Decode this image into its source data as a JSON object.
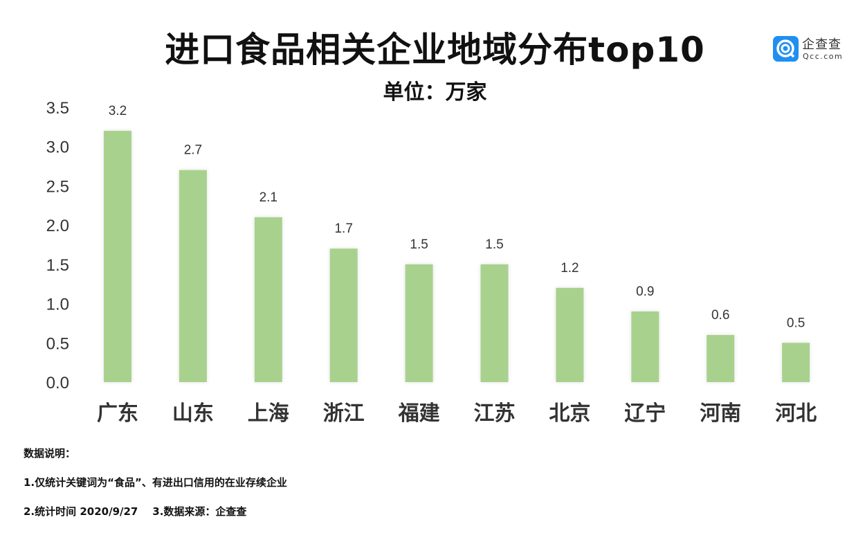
{
  "chart_data": {
    "type": "bar",
    "title": "进口食品相关企业地域分布top10",
    "subtitle": "单位：万家",
    "categories": [
      "广东",
      "山东",
      "上海",
      "浙江",
      "福建",
      "江苏",
      "北京",
      "辽宁",
      "河南",
      "河北"
    ],
    "values": [
      3.2,
      2.7,
      2.1,
      1.7,
      1.5,
      1.5,
      1.2,
      0.9,
      0.6,
      0.5
    ],
    "data_labels": [
      "3.2",
      "2.7",
      "2.1",
      "1.7",
      "1.5",
      "1.5",
      "1.2",
      "0.9",
      "0.6",
      "0.5"
    ],
    "yticks": [
      "0.0",
      "0.5",
      "1.0",
      "1.5",
      "2.0",
      "2.5",
      "3.0",
      "3.5"
    ],
    "ylim": [
      0,
      3.5
    ],
    "grid": false,
    "bar_color": "#a9d18e"
  },
  "logo": {
    "cn": "企查查",
    "en": "Qcc.com",
    "color": "#1f8ff0"
  },
  "notes": [
    "数据说明：",
    "1.仅统计关键词为“食品”、有进出口信用的在业存续企业",
    "2.统计时间 2020/9/27    3.数据来源：企查查"
  ]
}
